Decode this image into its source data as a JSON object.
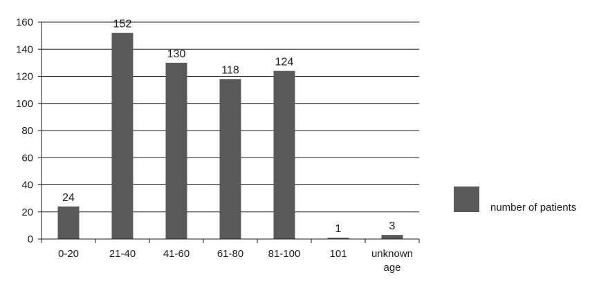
{
  "chart_data": {
    "type": "bar",
    "categories": [
      [
        "0-20"
      ],
      [
        "21-40"
      ],
      [
        "41-60"
      ],
      [
        "61-80"
      ],
      [
        "81-100"
      ],
      [
        "101"
      ],
      [
        "unknown",
        "age"
      ]
    ],
    "series": [
      {
        "name": "number of patients",
        "values": [
          24,
          152,
          130,
          118,
          124,
          1,
          3
        ]
      }
    ],
    "data_labels": [
      "24",
      "152",
      "130",
      "118",
      "124",
      "1",
      "3"
    ],
    "ylim": [
      0,
      160
    ],
    "yticks": [
      0,
      20,
      40,
      60,
      80,
      100,
      120,
      140,
      160
    ],
    "grid": true,
    "legend_position": "right",
    "colors": {
      "bar": "#595959"
    }
  }
}
